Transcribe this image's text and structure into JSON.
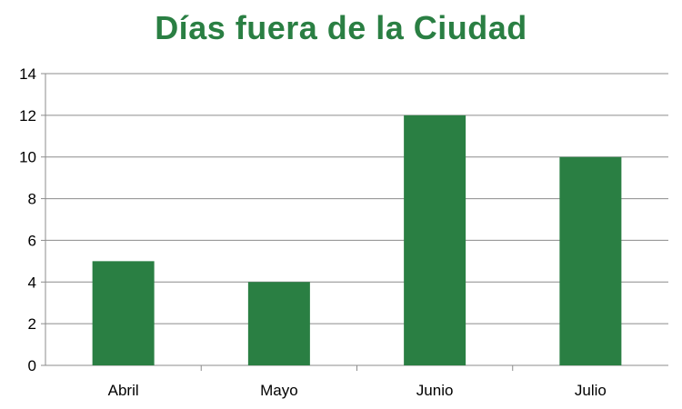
{
  "chart_data": {
    "type": "bar",
    "title": "Días fuera de la Ciudad",
    "categories": [
      "Abril",
      "Mayo",
      "Junio",
      "Julio"
    ],
    "values": [
      5,
      4,
      12,
      10
    ],
    "xlabel": "",
    "ylabel": "",
    "ylim": [
      0,
      14
    ],
    "yticks": [
      0,
      2,
      4,
      6,
      8,
      10,
      12,
      14
    ],
    "grid": true,
    "legend": "none",
    "bar_color": "#2a7f43",
    "title_color": "#2a7f43",
    "gridline_color": "#8c8c8c"
  }
}
